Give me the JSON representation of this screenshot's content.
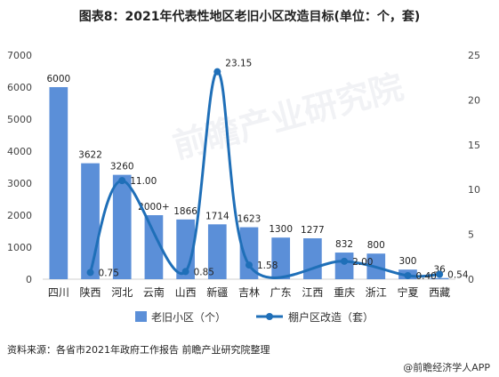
{
  "title": "图表8：2021年代表性地区老旧小区改造目标(单位：个，套)",
  "chart_data": {
    "type": "bar+line",
    "categories": [
      "四川",
      "陕西",
      "河北",
      "云南",
      "山西",
      "新疆",
      "吉林",
      "广东",
      "江西",
      "重庆",
      "浙江",
      "宁夏",
      "西藏"
    ],
    "series": [
      {
        "name": "老旧小区（个）",
        "type": "bar",
        "axis": "left",
        "color": "#5b8fd8",
        "values": [
          6000,
          3622,
          3260,
          2000,
          1866,
          1714,
          1623,
          1300,
          1277,
          832,
          800,
          300,
          36
        ],
        "labels": [
          "6000",
          "3622",
          "3260",
          "2000+",
          "1866",
          "1714",
          "1623",
          "1300",
          "1277",
          "832",
          "800",
          "300",
          "36"
        ]
      },
      {
        "name": "棚户区改造（套）",
        "type": "line",
        "axis": "right",
        "color": "#1f6fb8",
        "points": [
          {
            "category": "陕西",
            "value": 0.75,
            "label": "0.75"
          },
          {
            "category": "河北",
            "value": 11.0,
            "label": "11.00"
          },
          {
            "category": "山西",
            "value": 0.85,
            "label": "0.85"
          },
          {
            "category": "新疆",
            "value": 23.15,
            "label": "23.15"
          },
          {
            "category": "吉林",
            "value": 1.58,
            "label": "1.58"
          },
          {
            "category": "重庆",
            "value": 2.0,
            "label": "2.00"
          },
          {
            "category": "宁夏",
            "value": 0.4,
            "label": "0.40"
          },
          {
            "category": "西藏",
            "value": 0.54,
            "label": "0.54"
          }
        ]
      }
    ],
    "y_left": {
      "min": 0,
      "max": 7000,
      "ticks": [
        0,
        1000,
        2000,
        3000,
        4000,
        5000,
        6000,
        7000
      ]
    },
    "y_right": {
      "min": 0,
      "max": 25,
      "ticks": [
        0,
        5,
        10,
        15,
        20,
        25
      ]
    },
    "legend_position": "bottom"
  },
  "footer": {
    "source": "资料来源：各省市2021年政府工作报告 前瞻产业研究院整理",
    "app": "@前瞻经济学人APP"
  },
  "watermark": "前瞻产业研究院"
}
